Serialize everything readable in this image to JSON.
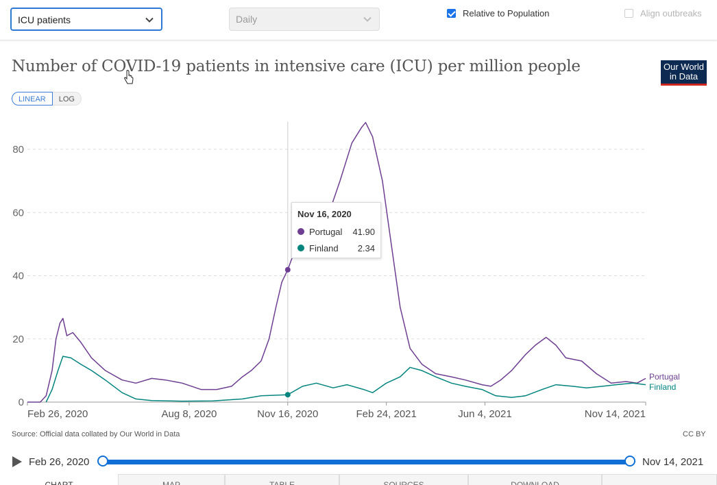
{
  "controls": {
    "metric_select": "ICU patients",
    "interval_select": "Daily",
    "relative_to_population": {
      "label": "Relative to Population",
      "checked": true
    },
    "align_outbreaks": {
      "label": "Align outbreaks",
      "checked": false
    }
  },
  "header": {
    "title": "Number of COVID-19 patients in intensive care (ICU) per million people",
    "logo_line1": "Our World",
    "logo_line2": "in Data",
    "scale_linear": "LINEAR",
    "scale_log": "LOG"
  },
  "tooltip": {
    "date": "Nov 16, 2020",
    "rows": [
      {
        "name": "Portugal",
        "value": "41.90"
      },
      {
        "name": "Finland",
        "value": "2.34"
      }
    ]
  },
  "footer": {
    "source": "Source: Official data collated by Our World in Data",
    "license": "CC BY"
  },
  "timeline": {
    "start": "Feb 26, 2020",
    "end": "Nov 14, 2021"
  },
  "tabs": [
    "CHART",
    "MAP",
    "TABLE",
    "SOURCES",
    "DOWNLOAD",
    ""
  ],
  "colors": {
    "portugal": "#6d3e91",
    "finland": "#00847e",
    "accent": "#0f6fd6"
  },
  "chart_data": {
    "type": "line",
    "title": "Number of COVID-19 patients in intensive care (ICU) per million people",
    "x_ticks": [
      "Feb 26, 2020",
      "Aug 8, 2020",
      "Nov 16, 2020",
      "Feb 24, 2021",
      "Jun 4, 2021",
      "Nov 14, 2021"
    ],
    "x_range": [
      "2020-02-26",
      "2021-11-14"
    ],
    "y_ticks": [
      0,
      20,
      40,
      60,
      80
    ],
    "ylim": [
      0,
      88
    ],
    "grid": true,
    "legend": "end-of-line labels",
    "hover_date": "2020-11-16",
    "series": [
      {
        "name": "Portugal",
        "color": "#6d3e91",
        "points": [
          [
            "2020-02-26",
            0
          ],
          [
            "2020-03-10",
            0
          ],
          [
            "2020-03-16",
            2
          ],
          [
            "2020-03-22",
            10
          ],
          [
            "2020-03-26",
            20
          ],
          [
            "2020-03-30",
            25
          ],
          [
            "2020-04-02",
            26.5
          ],
          [
            "2020-04-06",
            21
          ],
          [
            "2020-04-12",
            22
          ],
          [
            "2020-04-20",
            19
          ],
          [
            "2020-05-01",
            14
          ],
          [
            "2020-05-15",
            10
          ],
          [
            "2020-06-01",
            7
          ],
          [
            "2020-06-15",
            6
          ],
          [
            "2020-07-01",
            7.5
          ],
          [
            "2020-07-15",
            7
          ],
          [
            "2020-08-01",
            6
          ],
          [
            "2020-08-20",
            4
          ],
          [
            "2020-09-05",
            4
          ],
          [
            "2020-09-20",
            5
          ],
          [
            "2020-10-01",
            8
          ],
          [
            "2020-10-10",
            10
          ],
          [
            "2020-10-20",
            13
          ],
          [
            "2020-10-28",
            20
          ],
          [
            "2020-11-04",
            30
          ],
          [
            "2020-11-10",
            38
          ],
          [
            "2020-11-16",
            41.9
          ],
          [
            "2020-11-22",
            47
          ],
          [
            "2020-11-30",
            52
          ],
          [
            "2020-12-08",
            53
          ],
          [
            "2020-12-18",
            55
          ],
          [
            "2020-12-28",
            60
          ],
          [
            "2021-01-08",
            70
          ],
          [
            "2021-01-20",
            82
          ],
          [
            "2021-01-30",
            87
          ],
          [
            "2021-02-03",
            88.5
          ],
          [
            "2021-02-10",
            84
          ],
          [
            "2021-02-20",
            70
          ],
          [
            "2021-03-01",
            50
          ],
          [
            "2021-03-10",
            30
          ],
          [
            "2021-03-20",
            17
          ],
          [
            "2021-04-01",
            12
          ],
          [
            "2021-04-15",
            9
          ],
          [
            "2021-05-01",
            8
          ],
          [
            "2021-05-15",
            7
          ],
          [
            "2021-06-01",
            5.5
          ],
          [
            "2021-06-10",
            5
          ],
          [
            "2021-06-20",
            7
          ],
          [
            "2021-07-01",
            10
          ],
          [
            "2021-07-15",
            15
          ],
          [
            "2021-07-25",
            18
          ],
          [
            "2021-08-05",
            20.5
          ],
          [
            "2021-08-15",
            18
          ],
          [
            "2021-08-25",
            14
          ],
          [
            "2021-09-10",
            13
          ],
          [
            "2021-09-25",
            9
          ],
          [
            "2021-10-10",
            6
          ],
          [
            "2021-10-25",
            6.5
          ],
          [
            "2021-11-05",
            6
          ],
          [
            "2021-11-14",
            7.5
          ]
        ]
      },
      {
        "name": "Finland",
        "color": "#00847e",
        "points": [
          [
            "2020-03-16",
            0
          ],
          [
            "2020-03-22",
            4
          ],
          [
            "2020-03-28",
            10
          ],
          [
            "2020-04-02",
            14.5
          ],
          [
            "2020-04-10",
            14
          ],
          [
            "2020-04-20",
            12
          ],
          [
            "2020-05-01",
            10
          ],
          [
            "2020-05-15",
            7
          ],
          [
            "2020-06-01",
            3
          ],
          [
            "2020-06-15",
            1
          ],
          [
            "2020-07-01",
            0.5
          ],
          [
            "2020-08-01",
            0.3
          ],
          [
            "2020-09-01",
            0.4
          ],
          [
            "2020-10-01",
            1
          ],
          [
            "2020-10-20",
            2
          ],
          [
            "2020-11-16",
            2.34
          ],
          [
            "2020-12-01",
            5
          ],
          [
            "2020-12-15",
            6
          ],
          [
            "2021-01-01",
            4.5
          ],
          [
            "2021-01-15",
            5.5
          ],
          [
            "2021-02-01",
            4
          ],
          [
            "2021-02-10",
            3
          ],
          [
            "2021-02-24",
            6
          ],
          [
            "2021-03-10",
            8
          ],
          [
            "2021-03-20",
            11
          ],
          [
            "2021-04-01",
            10
          ],
          [
            "2021-04-15",
            8
          ],
          [
            "2021-05-01",
            6
          ],
          [
            "2021-05-15",
            5
          ],
          [
            "2021-06-01",
            4
          ],
          [
            "2021-06-15",
            2
          ],
          [
            "2021-07-01",
            1.5
          ],
          [
            "2021-07-15",
            2
          ],
          [
            "2021-08-01",
            4
          ],
          [
            "2021-08-15",
            5.5
          ],
          [
            "2021-09-01",
            5
          ],
          [
            "2021-09-15",
            4.5
          ],
          [
            "2021-10-01",
            5
          ],
          [
            "2021-10-15",
            5.5
          ],
          [
            "2021-11-01",
            6
          ],
          [
            "2021-11-14",
            5.5
          ]
        ]
      }
    ]
  }
}
